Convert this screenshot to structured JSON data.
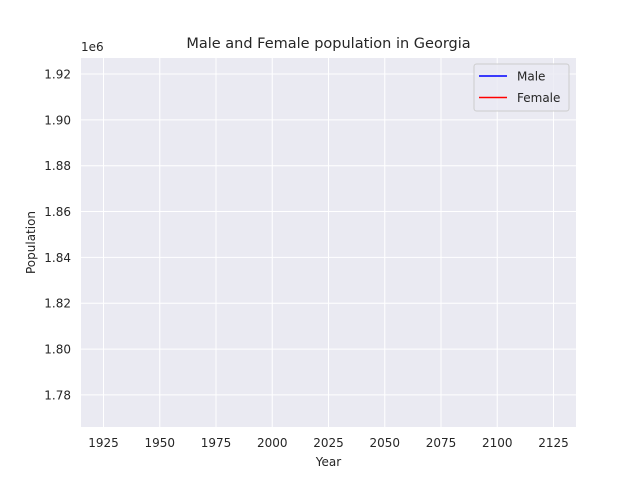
{
  "chart_data": {
    "type": "line",
    "title": "Male and Female population in Georgia",
    "xlabel": "Year",
    "ylabel": "Population",
    "y_offset_label": "1e6",
    "xlim": [
      1915,
      2135
    ],
    "ylim": [
      1766000,
      1927000
    ],
    "x_ticks": [
      1925,
      1950,
      1975,
      2000,
      2025,
      2050,
      2075,
      2100,
      2125
    ],
    "y_ticks": [
      1780000,
      1800000,
      1820000,
      1840000,
      1860000,
      1880000,
      1900000,
      1920000
    ],
    "y_tick_labels": [
      "1.78",
      "1.80",
      "1.82",
      "1.84",
      "1.86",
      "1.88",
      "1.90",
      "1.92"
    ],
    "grid": true,
    "legend_position": "top-right",
    "series": [
      {
        "name": "Male",
        "color": "#0000ff",
        "x": [],
        "y": []
      },
      {
        "name": "Female",
        "color": "#ff0000",
        "x": [],
        "y": []
      }
    ]
  },
  "colors": {
    "plot_background": "#eaeaf2",
    "grid": "#ffffff",
    "text": "#262626"
  }
}
